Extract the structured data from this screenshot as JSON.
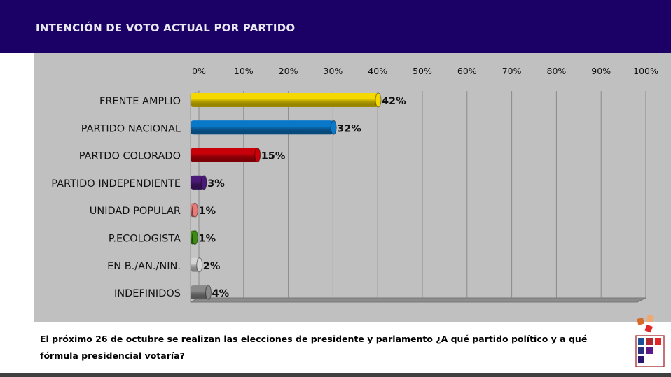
{
  "header": {
    "title": "INTENCIÓN DE VOTO ACTUAL POR PARTIDO"
  },
  "chart_data": {
    "type": "bar",
    "orientation": "horizontal",
    "title": "INTENCIÓN DE VOTO ACTUAL POR PARTIDO",
    "categories": [
      "FRENTE AMPLIO",
      "PARTIDO NACIONAL",
      "PARTDO COLORADO",
      "PARTIDO INDEPENDIENTE",
      "UNIDAD POPULAR",
      "P.ECOLOGISTA",
      "EN B./AN./NIN.",
      "INDEFINIDOS"
    ],
    "values": [
      42,
      32,
      15,
      3,
      1,
      1,
      2,
      4
    ],
    "data_labels": [
      "42%",
      "32%",
      "15%",
      "3%",
      "1%",
      "1%",
      "2%",
      "4%"
    ],
    "colors": [
      "#f5d800",
      "#0a78c8",
      "#c8000a",
      "#4b1a78",
      "#e87a7a",
      "#3c8c14",
      "#d4d4d4",
      "#8a8a8a"
    ],
    "xticks": [
      "0%",
      "10%",
      "20%",
      "30%",
      "40%",
      "50%",
      "60%",
      "70%",
      "80%",
      "90%",
      "100%"
    ],
    "xlim": [
      0,
      100
    ],
    "grid": true,
    "xlabel": "",
    "ylabel": ""
  },
  "question": "El próximo 26 de octubre se realizan las elecciones de presidente y parlamento ¿A qué partido político y a qué fórmula presidencial votaría?"
}
